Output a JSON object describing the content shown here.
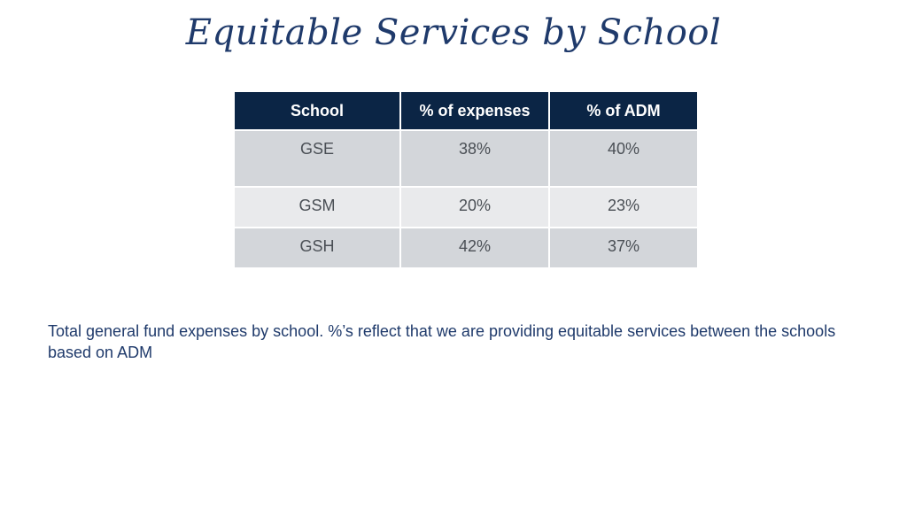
{
  "title": "Equitable Services by School",
  "table": {
    "headers": [
      "School",
      "% of expenses",
      "% of ADM"
    ],
    "rows": [
      [
        "GSE",
        "38%",
        "40%"
      ],
      [
        "GSM",
        "20%",
        "23%"
      ],
      [
        "GSH",
        "42%",
        "37%"
      ]
    ]
  },
  "caption": "Total general fund expenses by school. %’s reflect that we are providing equitable services between the schools based on ADM",
  "colors": {
    "title": "#1f3a6b",
    "header_bg": "#0b2545",
    "row_dark": "#d3d6da",
    "row_light": "#e9eaec",
    "caption": "#1f3a6b"
  }
}
